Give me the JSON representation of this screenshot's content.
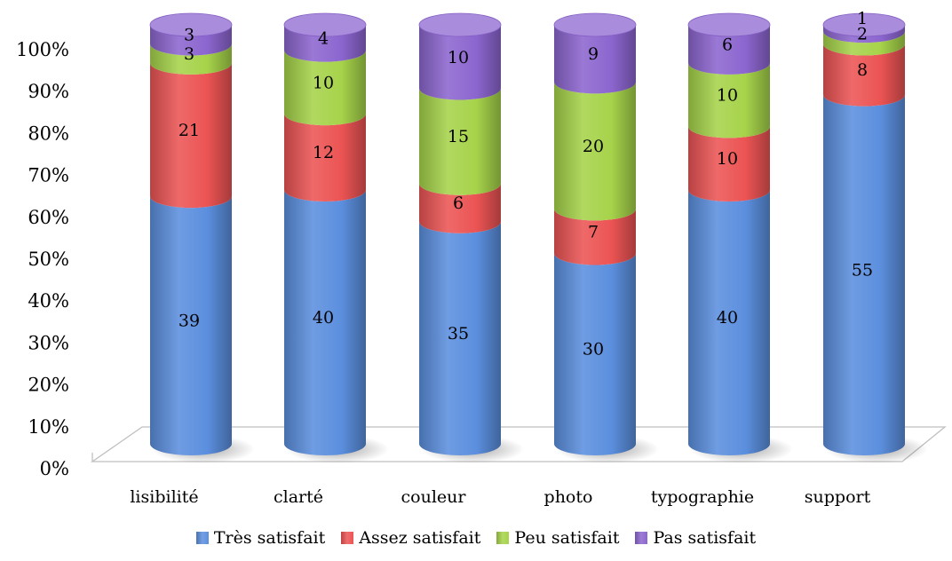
{
  "chart_data": {
    "type": "bar",
    "stacked": "percent",
    "style": "3d-cylinder",
    "categories": [
      "lisibilité",
      "clarté",
      "couleur",
      "photo",
      "typographie",
      "support"
    ],
    "series": [
      {
        "name": "Très satisfait",
        "values": [
          39,
          40,
          35,
          30,
          40,
          55
        ],
        "color": "#5b8fde"
      },
      {
        "name": "Assez satisfait",
        "values": [
          21,
          12,
          6,
          7,
          10,
          8
        ],
        "color": "#ec5454"
      },
      {
        "name": "Peu satisfait",
        "values": [
          3,
          10,
          15,
          20,
          10,
          2
        ],
        "color": "#a6d34a"
      },
      {
        "name": "Pas satisfait",
        "values": [
          3,
          4,
          10,
          9,
          6,
          1
        ],
        "color": "#8c66cf"
      }
    ],
    "yaxis": {
      "ticks": [
        "0%",
        "10%",
        "20%",
        "30%",
        "40%",
        "50%",
        "60%",
        "70%",
        "80%",
        "90%",
        "100%"
      ],
      "ylim": [
        0,
        100
      ]
    },
    "legend_position": "bottom",
    "grid": false
  }
}
